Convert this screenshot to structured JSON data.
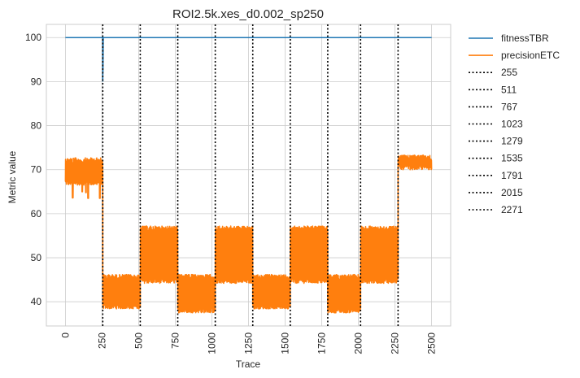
{
  "chart_data": {
    "type": "line",
    "title": "ROI2.5k.xes_d0.002_sp250",
    "xlabel": "Trace",
    "ylabel": "Metric value",
    "xlim": [
      -130,
      2630
    ],
    "ylim": [
      34.5,
      103
    ],
    "x_ticks": [
      0,
      250,
      500,
      750,
      1000,
      1250,
      1500,
      1750,
      2000,
      2250,
      2500
    ],
    "x_tick_labels": [
      "0",
      "250",
      "500",
      "750",
      "1000",
      "1250",
      "1500",
      "1750",
      "2000",
      "2250",
      "2500"
    ],
    "y_ticks": [
      40,
      50,
      60,
      70,
      80,
      90,
      100
    ],
    "y_tick_labels": [
      "40",
      "50",
      "60",
      "70",
      "80",
      "90",
      "100"
    ],
    "grid": true,
    "legend_position": "outside-right",
    "series": [
      {
        "name": "fitnessTBR",
        "color": "#1f77b4",
        "x": [
          0,
          255,
          255,
          256,
          256,
          258,
          260,
          2500
        ],
        "y": [
          100,
          100,
          90,
          98,
          92,
          100,
          100,
          100
        ]
      },
      {
        "name": "precisionETC",
        "color": "#ff7f0e",
        "segments": [
          {
            "x_start": 0,
            "x_end": 255,
            "y_low": 66.5,
            "y_high": 72.7,
            "dips": [
              [
                50,
                63.6
              ],
              [
                115,
                65.0
              ],
              [
                140,
                64.8
              ],
              [
                155,
                63.5
              ],
              [
                235,
                63.5
              ]
            ]
          },
          {
            "x_start": 255,
            "x_end": 511,
            "y_low": 38.4,
            "y_high": 46.2
          },
          {
            "x_start": 511,
            "x_end": 767,
            "y_low": 44.2,
            "y_high": 57.2
          },
          {
            "x_start": 767,
            "x_end": 1023,
            "y_low": 37.5,
            "y_high": 46.2
          },
          {
            "x_start": 1023,
            "x_end": 1279,
            "y_low": 44.2,
            "y_high": 57.2
          },
          {
            "x_start": 1279,
            "x_end": 1535,
            "y_low": 38.4,
            "y_high": 46.2
          },
          {
            "x_start": 1535,
            "x_end": 1791,
            "y_low": 44.2,
            "y_high": 57.2
          },
          {
            "x_start": 1791,
            "x_end": 2015,
            "y_low": 37.5,
            "y_high": 46.2
          },
          {
            "x_start": 2015,
            "x_end": 2271,
            "y_low": 44.2,
            "y_high": 57.2
          },
          {
            "x_start": 2271,
            "x_end": 2500,
            "y_low": 70.0,
            "y_high": 73.3
          }
        ]
      }
    ],
    "vertical_lines": [
      {
        "name": "255",
        "x": 255
      },
      {
        "name": "511",
        "x": 511
      },
      {
        "name": "767",
        "x": 767
      },
      {
        "name": "1023",
        "x": 1023
      },
      {
        "name": "1279",
        "x": 1279
      },
      {
        "name": "1535",
        "x": 1535
      },
      {
        "name": "1791",
        "x": 1791
      },
      {
        "name": "2015",
        "x": 2015
      },
      {
        "name": "2271",
        "x": 2271
      }
    ],
    "vertical_line_color": "#000000"
  }
}
